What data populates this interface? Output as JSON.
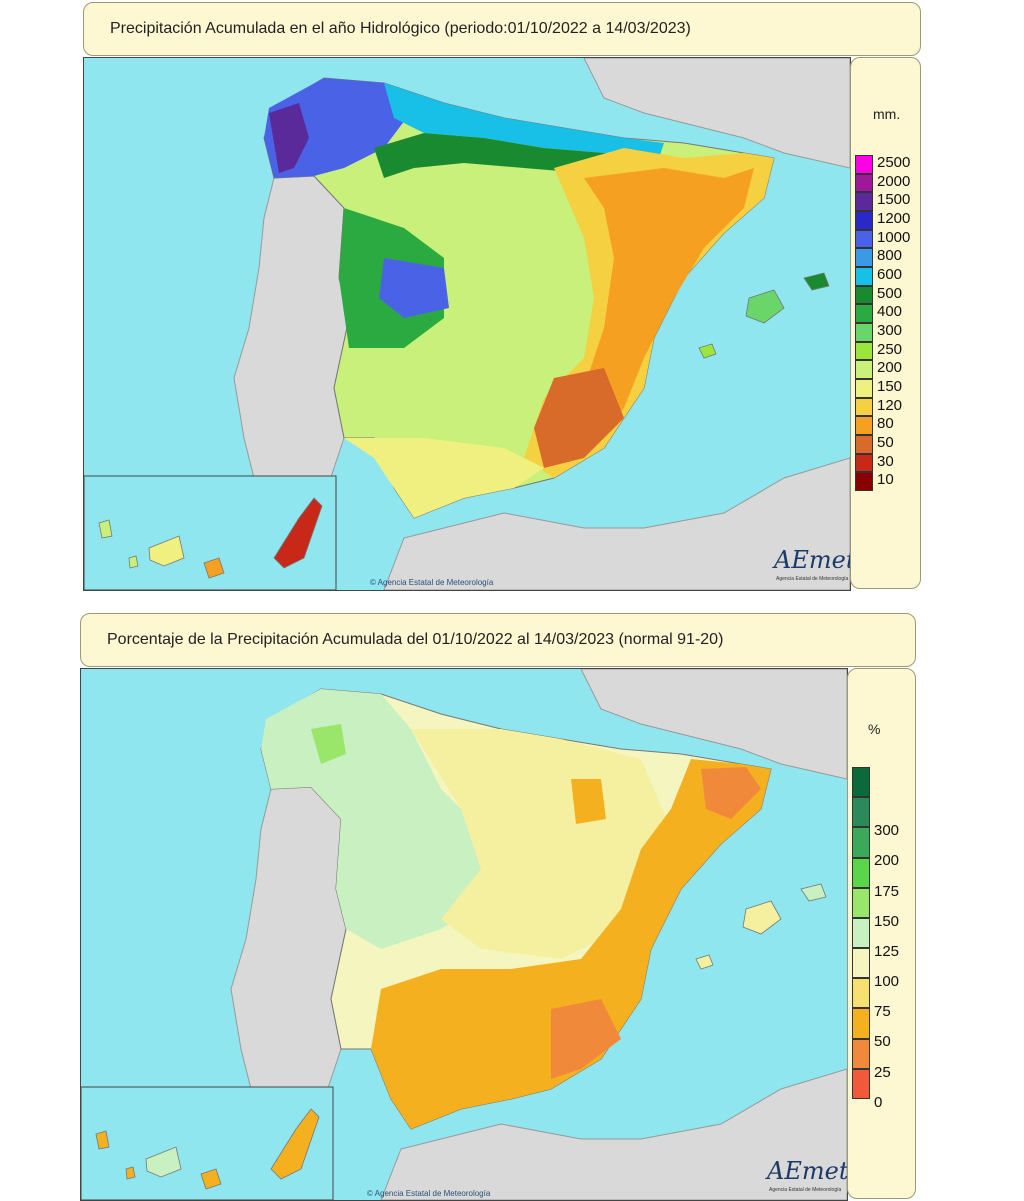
{
  "map1": {
    "title": "Precipitación Acumulada en el año Hidrológico  (periodo:01/10/2022 a 14/03/2023)",
    "unit": "mm.",
    "legend": [
      {
        "label": "2500",
        "color": "#ff00e6"
      },
      {
        "label": "2000",
        "color": "#a0189a"
      },
      {
        "label": "1500",
        "color": "#5a2a9a"
      },
      {
        "label": "1200",
        "color": "#2b28c8"
      },
      {
        "label": "1000",
        "color": "#4a63e6"
      },
      {
        "label": "800",
        "color": "#3a9ae6"
      },
      {
        "label": "600",
        "color": "#18c0e8"
      },
      {
        "label": "500",
        "color": "#1a8a30"
      },
      {
        "label": "400",
        "color": "#2aaa40"
      },
      {
        "label": "300",
        "color": "#6ad66a"
      },
      {
        "label": "250",
        "color": "#9ae63a"
      },
      {
        "label": "200",
        "color": "#c8f07a"
      },
      {
        "label": "150",
        "color": "#f0f080"
      },
      {
        "label": "120",
        "color": "#f5d040"
      },
      {
        "label": "80",
        "color": "#f5a020"
      },
      {
        "label": "50",
        "color": "#d86a2a"
      },
      {
        "label": "30",
        "color": "#c82818"
      },
      {
        "label": "10",
        "color": "#8a0000"
      }
    ],
    "credit": "© Agencia Estatal de Meteorología",
    "logo": "AEmet",
    "logo_sub": "Agencia Estatal de Meteorología"
  },
  "map2": {
    "title": "Porcentaje de la Precipitación Acumulada del 01/10/2022 al 14/03/2023 (normal 91-20)",
    "unit": "%",
    "legend": [
      {
        "label": "",
        "color": "#0a6a3a"
      },
      {
        "label": "300",
        "color": "#2a8a5a"
      },
      {
        "label": "200",
        "color": "#3aaa5a"
      },
      {
        "label": "175",
        "color": "#5ad64a"
      },
      {
        "label": "150",
        "color": "#9ae66a"
      },
      {
        "label": "125",
        "color": "#c8f0c0"
      },
      {
        "label": "100",
        "color": "#f5f5c0"
      },
      {
        "label": "75",
        "color": "#f5e070"
      },
      {
        "label": "50",
        "color": "#f5b020"
      },
      {
        "label": "25",
        "color": "#f08a3a"
      },
      {
        "label": "0",
        "color": "#f05a3a"
      }
    ],
    "credit": "© Agencia Estatal de Meteorología",
    "logo": "AEmet",
    "logo_sub": "Agencia Estatal de Meteorología"
  },
  "colors": {
    "sea": "#8fe6ee",
    "land_other": "#d9d9d9",
    "panel_bg": "#fdf7d2"
  }
}
